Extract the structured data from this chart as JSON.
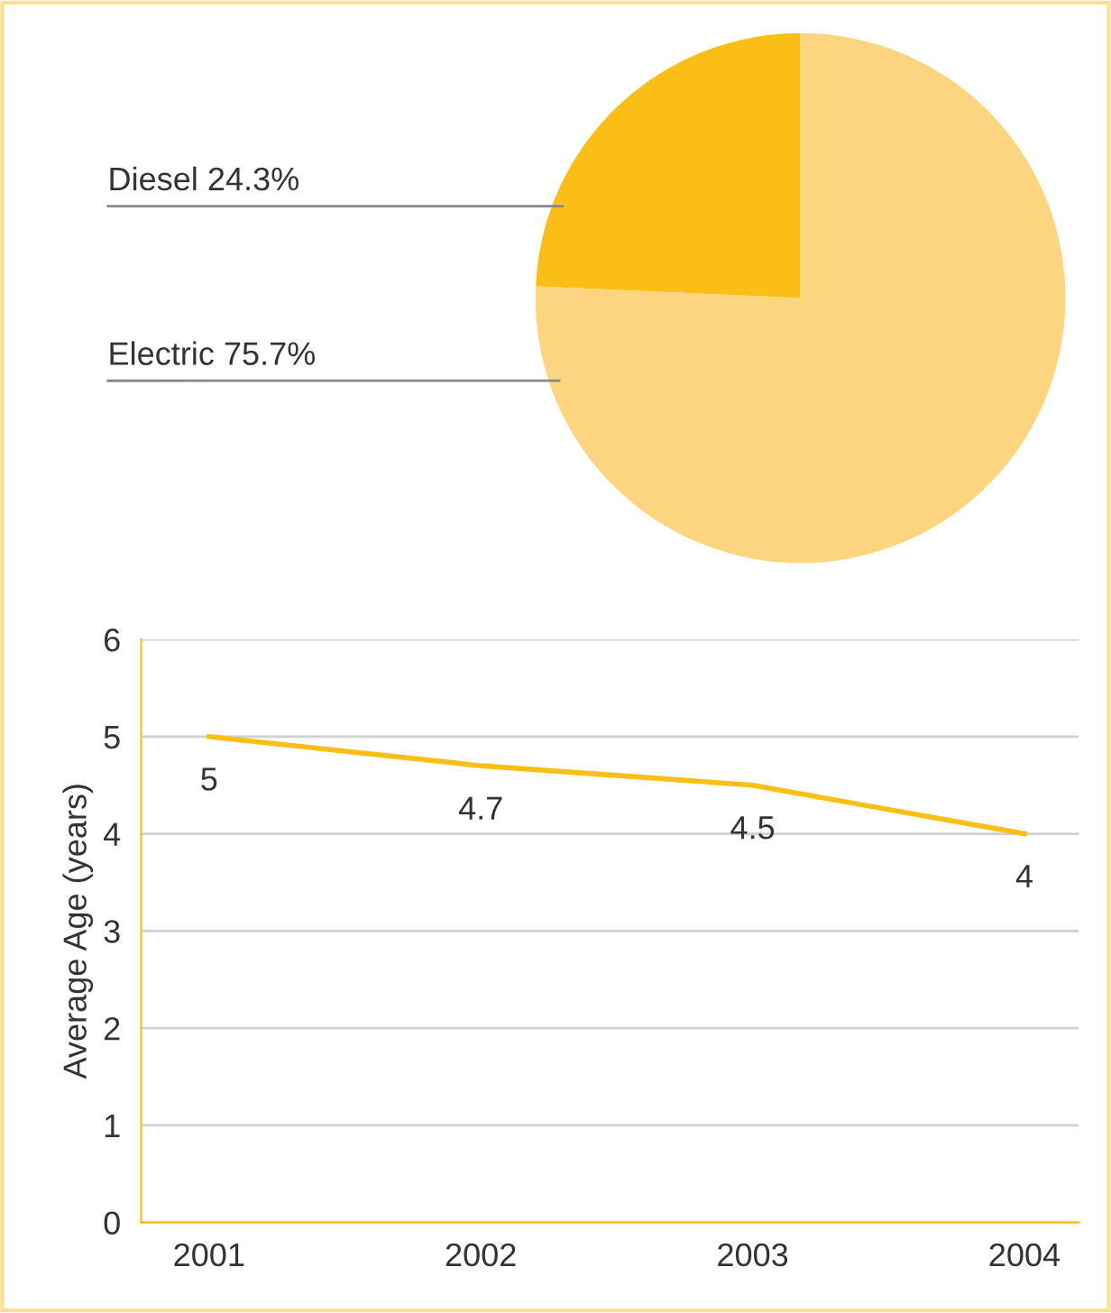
{
  "chart_data": [
    {
      "type": "pie",
      "categories": [
        "Diesel",
        "Electric"
      ],
      "values": [
        24.3,
        75.7
      ],
      "value_labels": [
        "24.3%",
        "75.7%"
      ],
      "colors": [
        "#fbbe14",
        "#fdd57e"
      ]
    },
    {
      "type": "line",
      "categories": [
        "2001",
        "2002",
        "2003",
        "2004"
      ],
      "ylabel": "Average Age (years)",
      "series": [
        {
          "color": "#fbbe14",
          "values": [
            5,
            4.7,
            4.5,
            4
          ]
        }
      ],
      "ylim": [
        0,
        6
      ],
      "yticks": [
        0,
        1,
        2,
        3,
        4,
        5,
        6
      ],
      "grid": "y",
      "data_labels": true,
      "marker": "none",
      "line_style": "solid",
      "legend": false
    }
  ]
}
